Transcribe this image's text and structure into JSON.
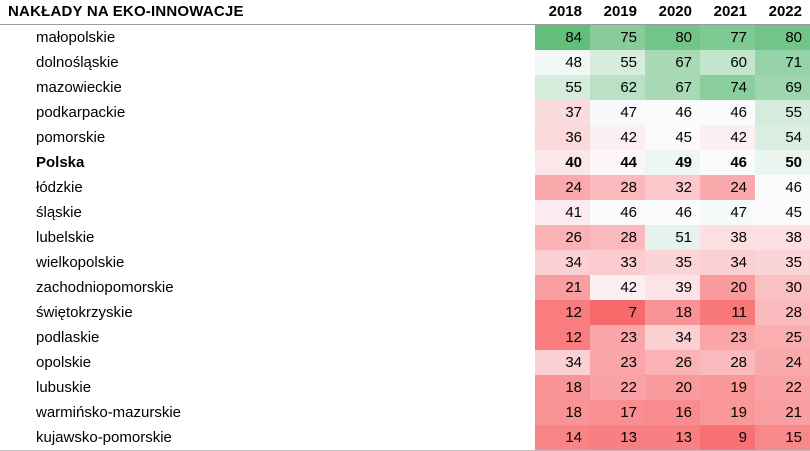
{
  "title": "NAKŁADY NA EKO-INNOWACJE",
  "chart_data": {
    "type": "heatmap",
    "title": "NAKŁADY NA EKO-INNOWACJE",
    "columns": [
      "2018",
      "2019",
      "2020",
      "2021",
      "2022"
    ],
    "rows": [
      {
        "label": "małopolskie",
        "bold": false,
        "values": [
          84,
          75,
          80,
          77,
          80
        ]
      },
      {
        "label": "dolnośląskie",
        "bold": false,
        "values": [
          48,
          55,
          67,
          60,
          71
        ]
      },
      {
        "label": "mazowieckie",
        "bold": false,
        "values": [
          55,
          62,
          67,
          74,
          69
        ]
      },
      {
        "label": "podkarpackie",
        "bold": false,
        "values": [
          37,
          47,
          46,
          46,
          55
        ]
      },
      {
        "label": "pomorskie",
        "bold": false,
        "values": [
          36,
          42,
          45,
          42,
          54
        ]
      },
      {
        "label": "Polska",
        "bold": true,
        "values": [
          40,
          44,
          49,
          46,
          50
        ]
      },
      {
        "label": "łódzkie",
        "bold": false,
        "values": [
          24,
          28,
          32,
          24,
          46
        ]
      },
      {
        "label": "śląskie",
        "bold": false,
        "values": [
          41,
          46,
          46,
          47,
          45
        ]
      },
      {
        "label": "lubelskie",
        "bold": false,
        "values": [
          26,
          28,
          51,
          38,
          38
        ]
      },
      {
        "label": "wielkopolskie",
        "bold": false,
        "values": [
          34,
          33,
          35,
          34,
          35
        ]
      },
      {
        "label": "zachodniopomorskie",
        "bold": false,
        "values": [
          21,
          42,
          39,
          20,
          30
        ]
      },
      {
        "label": "świętokrzyskie",
        "bold": false,
        "values": [
          12,
          7,
          18,
          11,
          28
        ]
      },
      {
        "label": "podlaskie",
        "bold": false,
        "values": [
          12,
          23,
          34,
          23,
          25
        ]
      },
      {
        "label": "opolskie",
        "bold": false,
        "values": [
          34,
          23,
          26,
          28,
          24
        ]
      },
      {
        "label": "lubuskie",
        "bold": false,
        "values": [
          18,
          22,
          20,
          19,
          22
        ]
      },
      {
        "label": "warmińsko-mazurskie",
        "bold": false,
        "values": [
          18,
          17,
          16,
          19,
          21
        ]
      },
      {
        "label": "kujawsko-pomorskie",
        "bold": false,
        "values": [
          14,
          13,
          13,
          9,
          15
        ]
      }
    ],
    "color_scale": {
      "min_value": 7,
      "mid_value": 45.5,
      "max_value": 84,
      "min_color": "#F8696B",
      "mid_color": "#FCFCFF",
      "max_color": "#63BE7B"
    },
    "layout": {
      "legend": "none",
      "grid": "off",
      "value_alignment": "right"
    }
  }
}
